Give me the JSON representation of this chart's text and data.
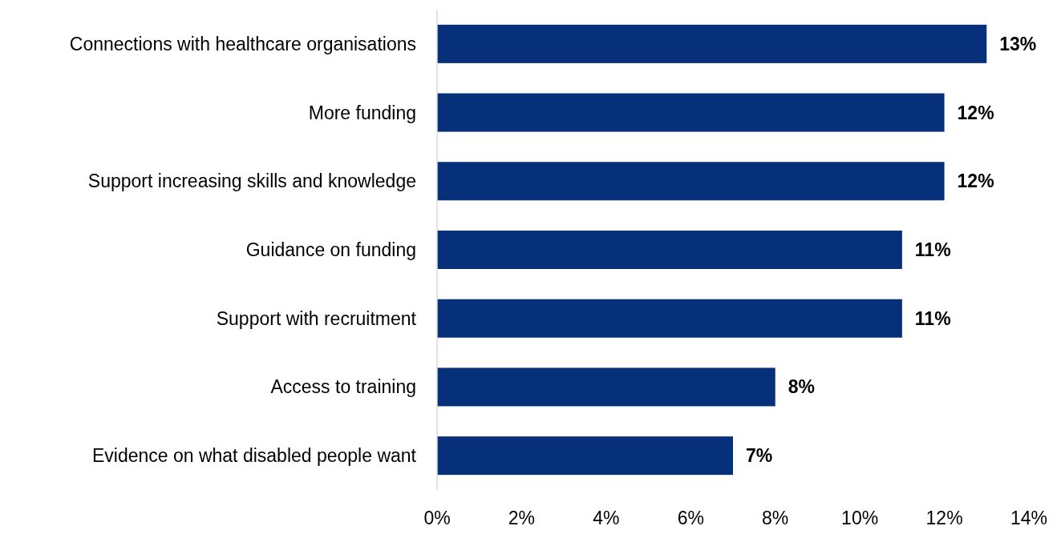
{
  "chart_data": {
    "type": "bar",
    "orientation": "horizontal",
    "categories": [
      "Connections with healthcare organisations",
      "More funding",
      "Support increasing skills and knowledge",
      "Guidance on funding",
      "Support with recruitment",
      "Access to training",
      "Evidence on what disabled people want"
    ],
    "values": [
      13,
      12,
      12,
      11,
      11,
      8,
      7
    ],
    "value_labels": [
      "13%",
      "12%",
      "12%",
      "11%",
      "11%",
      "8%",
      "7%"
    ],
    "color": "#06307a",
    "xlim": [
      0,
      14
    ],
    "xticks": [
      {
        "value": 0,
        "label": "0%"
      },
      {
        "value": 2,
        "label": "2%"
      },
      {
        "value": 4,
        "label": "4%"
      },
      {
        "value": 6,
        "label": "6%"
      },
      {
        "value": 8,
        "label": "8%"
      },
      {
        "value": 10,
        "label": "10%"
      },
      {
        "value": 12,
        "label": "12%"
      },
      {
        "value": 14,
        "label": "14%"
      }
    ],
    "data_labels": false
  }
}
